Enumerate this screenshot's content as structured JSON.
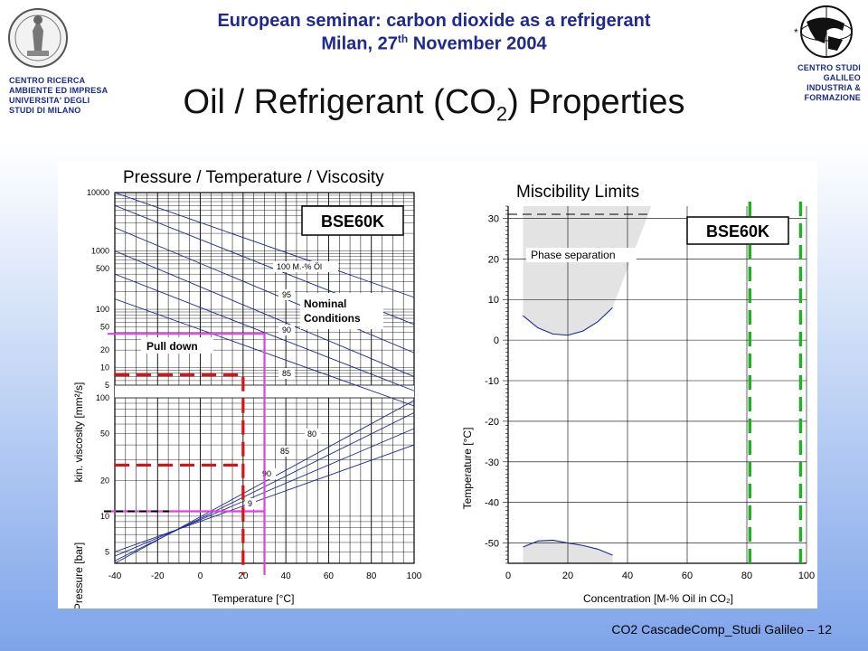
{
  "header": {
    "line1": "European seminar: carbon dioxide as a refrigerant",
    "line2_prefix": "Milan, 27",
    "line2_sup": "th",
    "line2_suffix": " November 2004"
  },
  "left_institution": [
    "CENTRO RICERCA",
    "AMBIENTE ED IMPRESA",
    "UNIVERSITA' DEGLI",
    "STUDI DI MILANO"
  ],
  "right_institution": [
    "CENTRO STUDI",
    "GALILEO",
    "INDUSTRIA &",
    "FORMAZIONE"
  ],
  "slide_title": {
    "main": "Oil / Refrigerant (CO",
    "sub": "2",
    "end": ") Properties"
  },
  "footer": "CO2 CascadeComp_Studi Galileo – 12",
  "colors": {
    "header_text": "#1f2a8f",
    "magenta": "#e040e0",
    "red": "#e01010",
    "green": "#1db31d",
    "curve": "#1a2a8f"
  },
  "chart_data": [
    {
      "type": "line",
      "title": "Pressure / Temperature / Viscosity",
      "badge": "BSE60K",
      "xlabel": "Temperature [°C]",
      "x_ticks": [
        "-40",
        "-20",
        "0",
        "20",
        "40",
        "60",
        "80",
        "100"
      ],
      "xlim": [
        -40,
        100
      ],
      "upper_panel": {
        "ylabel": "kin. viscosity [mm²/s]",
        "scale": "log",
        "ylim": [
          5,
          10000
        ],
        "y_ticks": [
          "10000",
          "1000",
          "500",
          "100",
          "50",
          "20",
          "10",
          "5"
        ],
        "curve_labels": [
          "100 M.-% Öl",
          "95",
          "90",
          "85"
        ]
      },
      "lower_panel": {
        "ylabel": "Vapour Pressure [bar]",
        "scale": "log",
        "ylim": [
          4,
          100
        ],
        "y_ticks": [
          "100",
          "50",
          "20",
          "10",
          "5"
        ],
        "curve_labels": [
          "80",
          "85",
          "90",
          "9"
        ]
      },
      "annotations": {
        "nominal": [
          "Nominal",
          "Conditions"
        ],
        "pulldown": "Pull down"
      },
      "nominal_conditions": {
        "temperature": 30,
        "viscosity": 38,
        "pressure": 11
      },
      "pulldown_conditions": {
        "temperature": 20,
        "viscosity": 7.5,
        "pressure": 27
      }
    },
    {
      "type": "line",
      "title": "Miscibility Limits",
      "badge": "BSE60K",
      "xlabel": "Concentration [M-% Oil in CO₂]",
      "ylabel": "Temperature [°C]",
      "xlim": [
        0,
        100
      ],
      "ylim": [
        -55,
        33
      ],
      "x_ticks": [
        "0",
        "20",
        "40",
        "60",
        "80",
        "100"
      ],
      "y_ticks": [
        "30",
        "20",
        "10",
        "0",
        "-10",
        "-20",
        "-30",
        "-40",
        "-50"
      ],
      "annotation": "Phase separation",
      "upper_boundary": [
        [
          5,
          6
        ],
        [
          10,
          3
        ],
        [
          15,
          1.5
        ],
        [
          20,
          1.2
        ],
        [
          25,
          2.2
        ],
        [
          30,
          4.5
        ],
        [
          35,
          8
        ]
      ],
      "lower_boundary": [
        [
          5,
          -51
        ],
        [
          10,
          -49.5
        ],
        [
          15,
          -49.3
        ],
        [
          20,
          -50
        ],
        [
          25,
          -50.6
        ],
        [
          30,
          -51.5
        ],
        [
          35,
          -53
        ]
      ],
      "green_lines_x": [
        81,
        98
      ]
    }
  ]
}
